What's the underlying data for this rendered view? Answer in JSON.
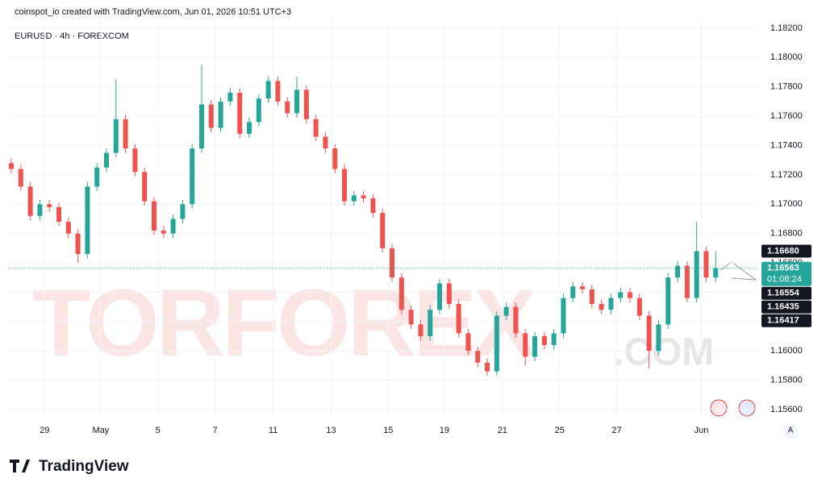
{
  "header": {
    "credit": "coinspot_io created with TradingView.com, Jun 01, 2026 10:51 UTC+3",
    "symbol": "EURUSD · 4h · FOREXCOM"
  },
  "watermark": {
    "main": "TORFOREX",
    "suffix": ".COM"
  },
  "footer": {
    "brand": "TradingView",
    "scale_button": "A"
  },
  "chart_data": {
    "type": "candlestick",
    "up_color": "#26a69a",
    "down_color": "#ef5350",
    "x": [
      0,
      1,
      2,
      3,
      4,
      5,
      6,
      7,
      8,
      9,
      10,
      11,
      12,
      13,
      14,
      15,
      16,
      17,
      18,
      19,
      20,
      21,
      22,
      23,
      24,
      25,
      26,
      27,
      28,
      29,
      30,
      31,
      32,
      33,
      34,
      35,
      36,
      37,
      38,
      39,
      40,
      41,
      42,
      43,
      44,
      45,
      46,
      47,
      48,
      49,
      50,
      51,
      52,
      53,
      54,
      55,
      56,
      57,
      58,
      59,
      60,
      61,
      62,
      63,
      64,
      65,
      66,
      67,
      68,
      69,
      70,
      71,
      72,
      73,
      74
    ],
    "open": [
      1.1728,
      1.1724,
      1.1712,
      1.1692,
      1.17,
      1.1698,
      1.1688,
      1.168,
      1.1666,
      1.1712,
      1.1725,
      1.1735,
      1.1758,
      1.1738,
      1.1722,
      1.1702,
      1.1682,
      1.168,
      1.169,
      1.17,
      1.1738,
      1.1768,
      1.1752,
      1.177,
      1.1776,
      1.1748,
      1.1756,
      1.1772,
      1.1784,
      1.177,
      1.1762,
      1.1778,
      1.1758,
      1.1746,
      1.1738,
      1.1724,
      1.1702,
      1.1706,
      1.1704,
      1.1694,
      1.167,
      1.165,
      1.1628,
      1.1618,
      1.161,
      1.1628,
      1.1646,
      1.1632,
      1.1612,
      1.16,
      1.1592,
      1.1586,
      1.1624,
      1.163,
      1.1612,
      1.1596,
      1.161,
      1.1604,
      1.1612,
      1.1636,
      1.1644,
      1.1642,
      1.1632,
      1.1628,
      1.1636,
      1.164,
      1.1636,
      1.1624,
      1.16,
      1.1618,
      1.165,
      1.1658,
      1.1636,
      1.1668,
      1.165
    ],
    "high": [
      1.1731,
      1.1727,
      1.1715,
      1.1703,
      1.1703,
      1.1701,
      1.1691,
      1.1683,
      1.1715,
      1.1728,
      1.1738,
      1.1785,
      1.1761,
      1.1741,
      1.1725,
      1.1705,
      1.1685,
      1.1693,
      1.1703,
      1.1741,
      1.1795,
      1.1771,
      1.1773,
      1.1779,
      1.1779,
      1.1759,
      1.1775,
      1.1787,
      1.1787,
      1.1773,
      1.1787,
      1.1781,
      1.1761,
      1.1749,
      1.1741,
      1.1727,
      1.1709,
      1.1709,
      1.1707,
      1.1697,
      1.1673,
      1.1653,
      1.1631,
      1.1621,
      1.1631,
      1.1649,
      1.1649,
      1.1635,
      1.1615,
      1.1603,
      1.1595,
      1.1627,
      1.1633,
      1.1633,
      1.1615,
      1.1613,
      1.1613,
      1.1615,
      1.1639,
      1.1647,
      1.1647,
      1.1645,
      1.1635,
      1.1639,
      1.1643,
      1.1643,
      1.1639,
      1.1627,
      1.1621,
      1.1653,
      1.1661,
      1.1661,
      1.1688,
      1.1671,
      1.1668
    ],
    "low": [
      1.1721,
      1.1709,
      1.1689,
      1.1689,
      1.1695,
      1.1685,
      1.1677,
      1.166,
      1.1663,
      1.1709,
      1.1722,
      1.1732,
      1.1735,
      1.1719,
      1.1699,
      1.1679,
      1.1677,
      1.1677,
      1.1687,
      1.1697,
      1.1735,
      1.1749,
      1.1749,
      1.1767,
      1.1745,
      1.1745,
      1.1753,
      1.1769,
      1.1767,
      1.1759,
      1.1759,
      1.1755,
      1.1743,
      1.1735,
      1.1721,
      1.1699,
      1.1699,
      1.1701,
      1.1691,
      1.1667,
      1.1647,
      1.1625,
      1.1615,
      1.1607,
      1.1607,
      1.1625,
      1.1629,
      1.1609,
      1.1597,
      1.1589,
      1.1583,
      1.1583,
      1.1621,
      1.1609,
      1.159,
      1.1593,
      1.1601,
      1.1601,
      1.1609,
      1.1633,
      1.1639,
      1.1629,
      1.1625,
      1.1625,
      1.1633,
      1.1633,
      1.1621,
      1.1588,
      1.1597,
      1.1615,
      1.1647,
      1.1633,
      1.1633,
      1.1647,
      1.1647
    ],
    "close": [
      1.1724,
      1.1712,
      1.1692,
      1.17,
      1.1698,
      1.1688,
      1.168,
      1.1666,
      1.1712,
      1.1725,
      1.1735,
      1.1758,
      1.1738,
      1.1722,
      1.1702,
      1.1682,
      1.168,
      1.169,
      1.17,
      1.1738,
      1.1768,
      1.1752,
      1.177,
      1.1776,
      1.1748,
      1.1756,
      1.1772,
      1.1784,
      1.177,
      1.1762,
      1.1778,
      1.1758,
      1.1746,
      1.1738,
      1.1724,
      1.1702,
      1.1706,
      1.1704,
      1.1694,
      1.167,
      1.165,
      1.1628,
      1.1618,
      1.161,
      1.1628,
      1.1646,
      1.1632,
      1.1612,
      1.16,
      1.1592,
      1.1586,
      1.1624,
      1.163,
      1.1612,
      1.1596,
      1.161,
      1.1604,
      1.1612,
      1.1636,
      1.1644,
      1.1642,
      1.1632,
      1.1628,
      1.1636,
      1.164,
      1.1636,
      1.1624,
      1.16,
      1.1618,
      1.165,
      1.1658,
      1.1636,
      1.1668,
      1.165,
      1.16563
    ],
    "xlim": [
      -0.34,
      78.47
    ],
    "ylim": [
      1.15534,
      1.1826
    ],
    "xticks": [
      {
        "value": 3.5,
        "label": "29"
      },
      {
        "value": 9.4,
        "label": "May"
      },
      {
        "value": 15.4,
        "label": "5"
      },
      {
        "value": 21.4,
        "label": "7"
      },
      {
        "value": 27.5,
        "label": "11"
      },
      {
        "value": 33.6,
        "label": "13"
      },
      {
        "value": 39.6,
        "label": "15"
      },
      {
        "value": 45.5,
        "label": "19"
      },
      {
        "value": 51.6,
        "label": "21"
      },
      {
        "value": 57.6,
        "label": "25"
      },
      {
        "value": 63.6,
        "label": "27"
      },
      {
        "value": 72.5,
        "label": "Jun"
      }
    ],
    "yticks": [
      {
        "value": 1.182,
        "label": "1.18200"
      },
      {
        "value": 1.18,
        "label": "1.18000"
      },
      {
        "value": 1.178,
        "label": "1.17800"
      },
      {
        "value": 1.176,
        "label": "1.17600"
      },
      {
        "value": 1.174,
        "label": "1.17400"
      },
      {
        "value": 1.172,
        "label": "1.17200"
      },
      {
        "value": 1.17,
        "label": "1.17000"
      },
      {
        "value": 1.168,
        "label": "1.16800"
      },
      {
        "value": 1.166,
        "label": "1.16600"
      },
      {
        "value": 1.164,
        "label": "1.16400"
      },
      {
        "value": 1.162,
        "label": "1.16200"
      },
      {
        "value": 1.16,
        "label": "1.16000"
      },
      {
        "value": 1.158,
        "label": "1.15800"
      },
      {
        "value": 1.156,
        "label": "1.15600"
      }
    ],
    "price_markers": [
      {
        "value": 1.1668,
        "label": "1.16680",
        "color": "#131722"
      },
      {
        "value": 1.16563,
        "label": "1.16563",
        "color": "#26a69a"
      },
      {
        "value": 1.16554,
        "label": "1.16554",
        "color": "#131722"
      },
      {
        "value": 1.16435,
        "label": "1.16435",
        "color": "#131722"
      },
      {
        "value": 1.16417,
        "label": "1.16417",
        "color": "#131722"
      }
    ],
    "countdown": "01:08:24",
    "grid": true
  }
}
